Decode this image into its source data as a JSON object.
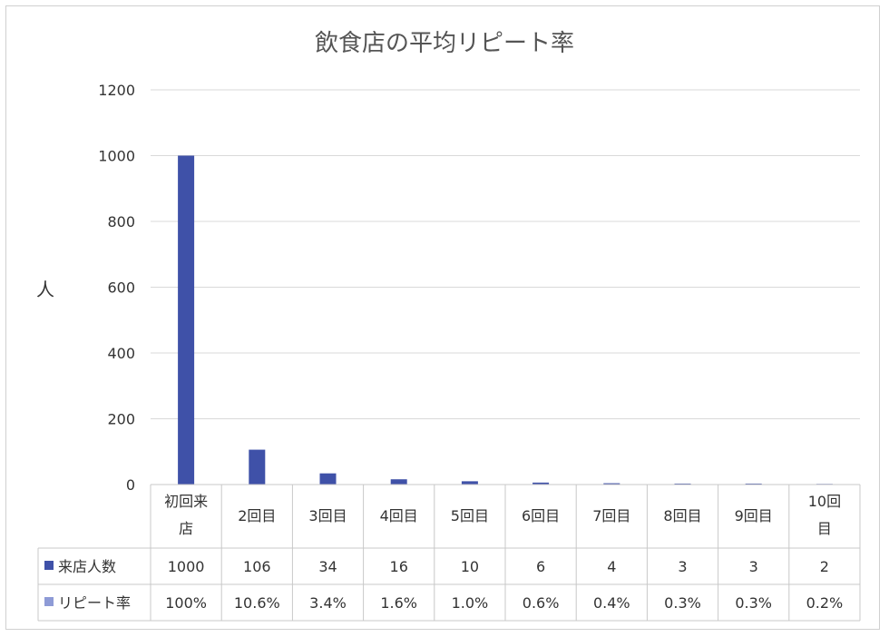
{
  "chart_data": {
    "type": "bar",
    "title": "飲食店の平均リピート率",
    "ylabel": "人",
    "ylim": [
      0,
      1200
    ],
    "yticks": [
      "1200",
      "1000",
      "800",
      "600",
      "400",
      "200",
      "0"
    ],
    "categories": [
      "初回来店",
      "2回目",
      "3回目",
      "4回目",
      "5回目",
      "6回目",
      "7回目",
      "8回目",
      "9回目",
      "10回目"
    ],
    "series": [
      {
        "name": "来店人数",
        "color": "#3f51a8",
        "values": [
          1000,
          106,
          34,
          16,
          10,
          6,
          4,
          3,
          3,
          2
        ],
        "labels": [
          "1000",
          "106",
          "34",
          "16",
          "10",
          "6",
          "4",
          "3",
          "3",
          "2"
        ]
      },
      {
        "name": "リピート率",
        "color": "#8e9bd6",
        "values": [
          100,
          10.6,
          3.4,
          1.6,
          1.0,
          0.6,
          0.4,
          0.3,
          0.3,
          0.2
        ],
        "labels": [
          "100%",
          "10.6%",
          "3.4%",
          "1.6%",
          "1.0%",
          "0.6%",
          "0.4%",
          "0.3%",
          "0.3%",
          "0.2%"
        ]
      }
    ],
    "grid": true,
    "legend": "data-table"
  }
}
